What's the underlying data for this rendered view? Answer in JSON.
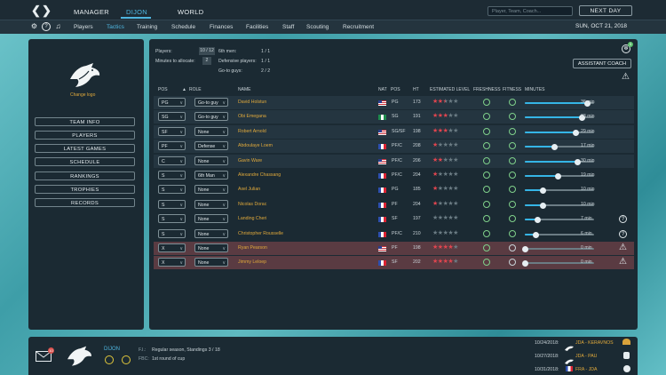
{
  "topbar": {
    "tabs": [
      {
        "label": "MANAGER"
      },
      {
        "label": "DIJON",
        "active": true
      },
      {
        "label": "WORLD"
      }
    ],
    "search_placeholder": "Player, Team, Coach...",
    "next_day_label": "NEXT DAY"
  },
  "subnav": {
    "items": [
      {
        "label": "Players"
      },
      {
        "label": "Tactics",
        "active": true
      },
      {
        "label": "Training"
      },
      {
        "label": "Schedule"
      },
      {
        "label": "Finances"
      },
      {
        "label": "Facilities"
      },
      {
        "label": "Staff"
      },
      {
        "label": "Scouting"
      },
      {
        "label": "Recruitment"
      }
    ],
    "date": "SUN, OCT 21, 2018"
  },
  "sidebar": {
    "change_logo": "Change logo",
    "buttons": [
      "TEAM INFO",
      "PLAYERS",
      "LATEST GAMES",
      "SCHEDULE",
      "RANKINGS",
      "TROPHIES",
      "RECORDS"
    ]
  },
  "summary": {
    "players_label": "Players:",
    "players_value": "10 / 12",
    "minutes_label": "Minutes to allocate:",
    "minutes_value": "2",
    "sixth_men_label": "6th men:",
    "sixth_men_value": "1 / 1",
    "defensive_label": "Defensive players:",
    "defensive_value": "1 / 1",
    "goto_label": "Go-to guys:",
    "goto_value": "2 / 2",
    "badge_count": "1",
    "assistant_coach": "ASSISTANT COACH"
  },
  "table": {
    "headers": {
      "pos": "POS",
      "role": "ROLE",
      "name": "NAME",
      "nat": "NAT",
      "pos2": "POS",
      "ht": "HT",
      "level": "ESTIMATED LEVEL",
      "freshness": "FRESHNESS",
      "fitness": "FITNESS",
      "minutes": "MINUTES"
    },
    "rows": [
      {
        "pos": "PG",
        "role": "Go-to guy",
        "name": "David Holstun",
        "nat": "us",
        "position": "PG",
        "ht": "173",
        "stars": 2.5,
        "minutes": "36 min",
        "min_value": 36,
        "status": "",
        "rowstyle": "alt"
      },
      {
        "pos": "SG",
        "role": "Go-to guy",
        "name": "Obi Emegana",
        "nat": "ng",
        "position": "SG",
        "ht": "191",
        "stars": 3,
        "minutes": "33 min",
        "min_value": 33,
        "status": "",
        "rowstyle": "alt"
      },
      {
        "pos": "SF",
        "role": "None",
        "name": "Robert Arnold",
        "nat": "us",
        "position": "SG/SF",
        "ht": "198",
        "stars": 3,
        "minutes": "29 min",
        "min_value": 29,
        "status": "",
        "rowstyle": "alt"
      },
      {
        "pos": "PF",
        "role": "Defense",
        "name": "Abdoulaye Loem",
        "nat": "fr",
        "position": "PF/C",
        "ht": "208",
        "stars": 1,
        "minutes": "17 min",
        "min_value": 17,
        "status": "",
        "rowstyle": "alt"
      },
      {
        "pos": "C",
        "role": "None",
        "name": "Gavin Ware",
        "nat": "us",
        "position": "PF/C",
        "ht": "206",
        "stars": 2,
        "minutes": "30 min",
        "min_value": 30,
        "status": "",
        "rowstyle": "alt"
      },
      {
        "pos": "S",
        "role": "6th Man",
        "name": "Alexandre Chassang",
        "nat": "fr",
        "position": "PF/C",
        "ht": "204",
        "stars": 1,
        "minutes": "19 min",
        "min_value": 19,
        "status": "",
        "rowstyle": ""
      },
      {
        "pos": "S",
        "role": "None",
        "name": "Axel Julian",
        "nat": "fr",
        "position": "PG",
        "ht": "185",
        "stars": 1,
        "minutes": "10 min",
        "min_value": 10,
        "status": "",
        "rowstyle": ""
      },
      {
        "pos": "S",
        "role": "None",
        "name": "Nicolas Dorac",
        "nat": "fr",
        "position": "PF",
        "ht": "204",
        "stars": 1,
        "minutes": "10 min",
        "min_value": 10,
        "status": "",
        "rowstyle": ""
      },
      {
        "pos": "S",
        "role": "None",
        "name": "Landing Cheri",
        "nat": "fr",
        "position": "SF",
        "ht": "197",
        "stars": 0,
        "minutes": "7 min",
        "min_value": 7,
        "status": "question",
        "rowstyle": ""
      },
      {
        "pos": "S",
        "role": "None",
        "name": "Christopher Rousselle",
        "nat": "fr",
        "position": "PF/C",
        "ht": "210",
        "stars": 0,
        "minutes": "6 min",
        "min_value": 6,
        "status": "question",
        "rowstyle": ""
      },
      {
        "pos": "X",
        "role": "None",
        "name": "Ryan Pearson",
        "nat": "us",
        "position": "PF",
        "ht": "198",
        "stars": 4,
        "minutes": "0 min",
        "min_value": 0,
        "status": "warning",
        "rowstyle": "inj"
      },
      {
        "pos": "X",
        "role": "None",
        "name": "Jimmy Leloep",
        "nat": "fr",
        "position": "SF",
        "ht": "202",
        "stars": 4,
        "minutes": "0 min",
        "min_value": 0,
        "status": "warning",
        "rowstyle": "inj"
      }
    ]
  },
  "bottom": {
    "team_name": "DIJON",
    "mail_count": "10",
    "fl_label": "F.I.:",
    "fl_value": "Regular season, Standings 3 / 18",
    "fbc_label": "FBC:",
    "fbc_value": "1st round of cup",
    "matches": [
      {
        "date": "10/24/2018:",
        "teams": "JDA - KERAVNOS"
      },
      {
        "date": "10/27/2018:",
        "teams": "JDA - PAU"
      },
      {
        "date": "10/31/2018:",
        "teams": "FRA - JDA"
      }
    ]
  },
  "colors": {
    "accent": "#4fb6e0",
    "gold": "#e0a93b",
    "star_red": "#e0454f",
    "fresh_green": "#7fd08a"
  }
}
